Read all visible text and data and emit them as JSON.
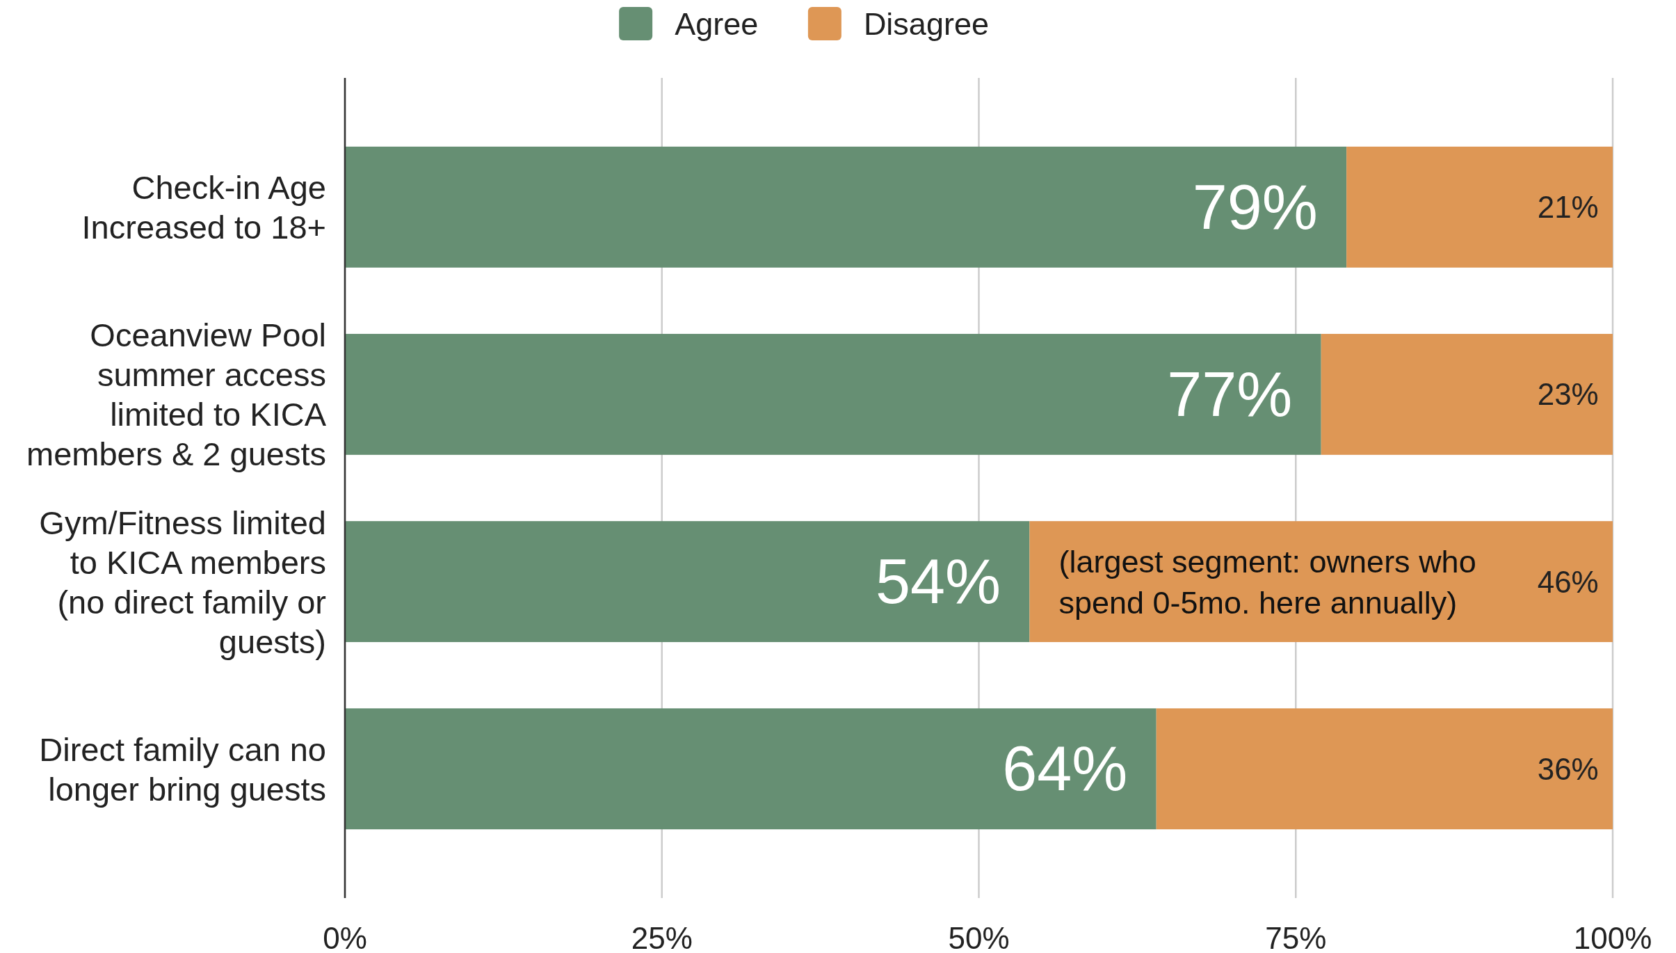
{
  "chart_data": {
    "type": "bar",
    "orientation": "horizontal",
    "stacked": true,
    "categories": [
      "Check-in Age\nIncreased to 18+",
      "Oceanview Pool\nsummer access\nlimited to KICA\nmembers & 2 guests",
      "Gym/Fitness limited\nto KICA members\n(no direct family or\nguests)",
      "Direct family can no\nlonger bring guests"
    ],
    "series": [
      {
        "name": "Agree",
        "color": "#668f73",
        "values": [
          79,
          77,
          54,
          64
        ],
        "value_labels": [
          "79%",
          "77%",
          "54%",
          "64%"
        ]
      },
      {
        "name": "Disagree",
        "color": "#de9755",
        "values": [
          21,
          23,
          46,
          36
        ],
        "value_labels": [
          "21%",
          "23%",
          "46%",
          "36%"
        ]
      }
    ],
    "xlim": [
      0,
      100
    ],
    "xticks": [
      {
        "value": 0,
        "label": "0%"
      },
      {
        "value": 25,
        "label": "25%"
      },
      {
        "value": 50,
        "label": "50%"
      },
      {
        "value": 75,
        "label": "75%"
      },
      {
        "value": 100,
        "label": "100%"
      }
    ],
    "grid": "x",
    "legend": "top",
    "annotations": [
      {
        "text": "(largest segment: owners who\nspend 0-5mo. here annually)",
        "x": 54,
        "y": "Gym/Fitness limited\nto KICA members\n(no direct family or\nguests)"
      }
    ]
  }
}
